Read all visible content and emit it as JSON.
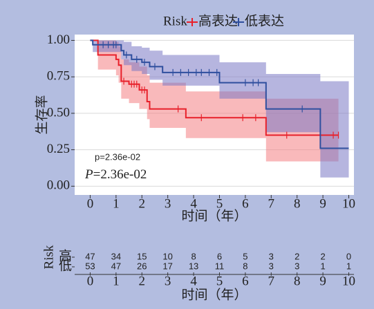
{
  "chart_data": [
    {
      "type": "km",
      "legend_title": "Risk",
      "xlabel": "时间（年）",
      "ylabel": "生存率",
      "annotations": [
        "p=2.36e-02"
      ],
      "p_symbol": "P",
      "p_text": "=2.36e-02",
      "xlim": [
        -0.6,
        10.2
      ],
      "ylim": [
        -0.06,
        1.04
      ],
      "xticks": [
        0,
        1,
        2,
        3,
        4,
        5,
        6,
        7,
        8,
        9,
        10
      ],
      "yticks": [
        {
          "value": 0,
          "label": "0.00"
        },
        {
          "value": 0.25,
          "label": "0.25"
        },
        {
          "value": 0.5,
          "label": "0.50"
        },
        {
          "value": 0.75,
          "label": "0.75"
        },
        {
          "value": 1,
          "label": "1.00"
        }
      ],
      "grid": true,
      "series": [
        {
          "name": "高表达",
          "color": "#e8202a",
          "band_color": "#f47f84",
          "x": [
            0,
            0.3,
            1.0,
            1.1,
            1.2,
            1.5,
            1.9,
            2.2,
            2.3,
            3.7,
            6.8,
            9.6
          ],
          "values": [
            1,
            0.9,
            0.87,
            0.83,
            0.72,
            0.7,
            0.66,
            0.58,
            0.53,
            0.47,
            0.35,
            0.35
          ],
          "lower": [
            1,
            0.8,
            0.76,
            0.71,
            0.6,
            0.57,
            0.53,
            0.46,
            0.4,
            0.33,
            0.17,
            0.17
          ],
          "upper": [
            1,
            1,
            0.99,
            0.96,
            0.87,
            0.85,
            0.82,
            0.76,
            0.71,
            0.65,
            0.6,
            0.6
          ],
          "censor_x": [
            1.3,
            1.6,
            1.7,
            1.8,
            2.0,
            2.1,
            3.4,
            4.3,
            5.9,
            6.4,
            7.6,
            9.4,
            9.6
          ]
        },
        {
          "name": "低表达",
          "color": "#2f4f9e",
          "band_color": "#7a78c4",
          "x": [
            0,
            0.1,
            1.2,
            1.3,
            1.6,
            2.0,
            2.3,
            2.8,
            5.0,
            6.8,
            8.9,
            10
          ],
          "values": [
            1,
            0.97,
            0.93,
            0.9,
            0.87,
            0.85,
            0.82,
            0.78,
            0.71,
            0.53,
            0.26,
            0.26
          ],
          "lower": [
            1,
            0.92,
            0.87,
            0.83,
            0.79,
            0.77,
            0.73,
            0.69,
            0.6,
            0.37,
            0.06,
            0.06
          ],
          "upper": [
            1,
            1,
            1,
            0.99,
            0.96,
            0.95,
            0.93,
            0.9,
            0.85,
            0.77,
            0.72,
            0.72
          ],
          "censor_x": [
            0.5,
            0.7,
            0.9,
            1.0,
            1.4,
            1.8,
            2.1,
            2.5,
            3.2,
            3.5,
            3.8,
            4.1,
            4.3,
            4.6,
            4.9,
            6.0,
            6.3,
            6.5,
            8.2
          ]
        }
      ]
    },
    {
      "type": "risk_table",
      "title": "Risk",
      "xlabel": "时间（年）",
      "xlim": [
        -0.6,
        10.2
      ],
      "xticks": [
        0,
        1,
        2,
        3,
        4,
        5,
        6,
        7,
        8,
        9,
        10
      ],
      "row_labels": [
        "高",
        "低"
      ],
      "row_colors": [
        "#e8202a",
        "#2f4f9e"
      ],
      "rows": [
        [
          47,
          34,
          15,
          10,
          8,
          6,
          5,
          3,
          2,
          2,
          0
        ],
        [
          53,
          47,
          26,
          17,
          13,
          11,
          8,
          3,
          3,
          1,
          1
        ]
      ]
    }
  ]
}
